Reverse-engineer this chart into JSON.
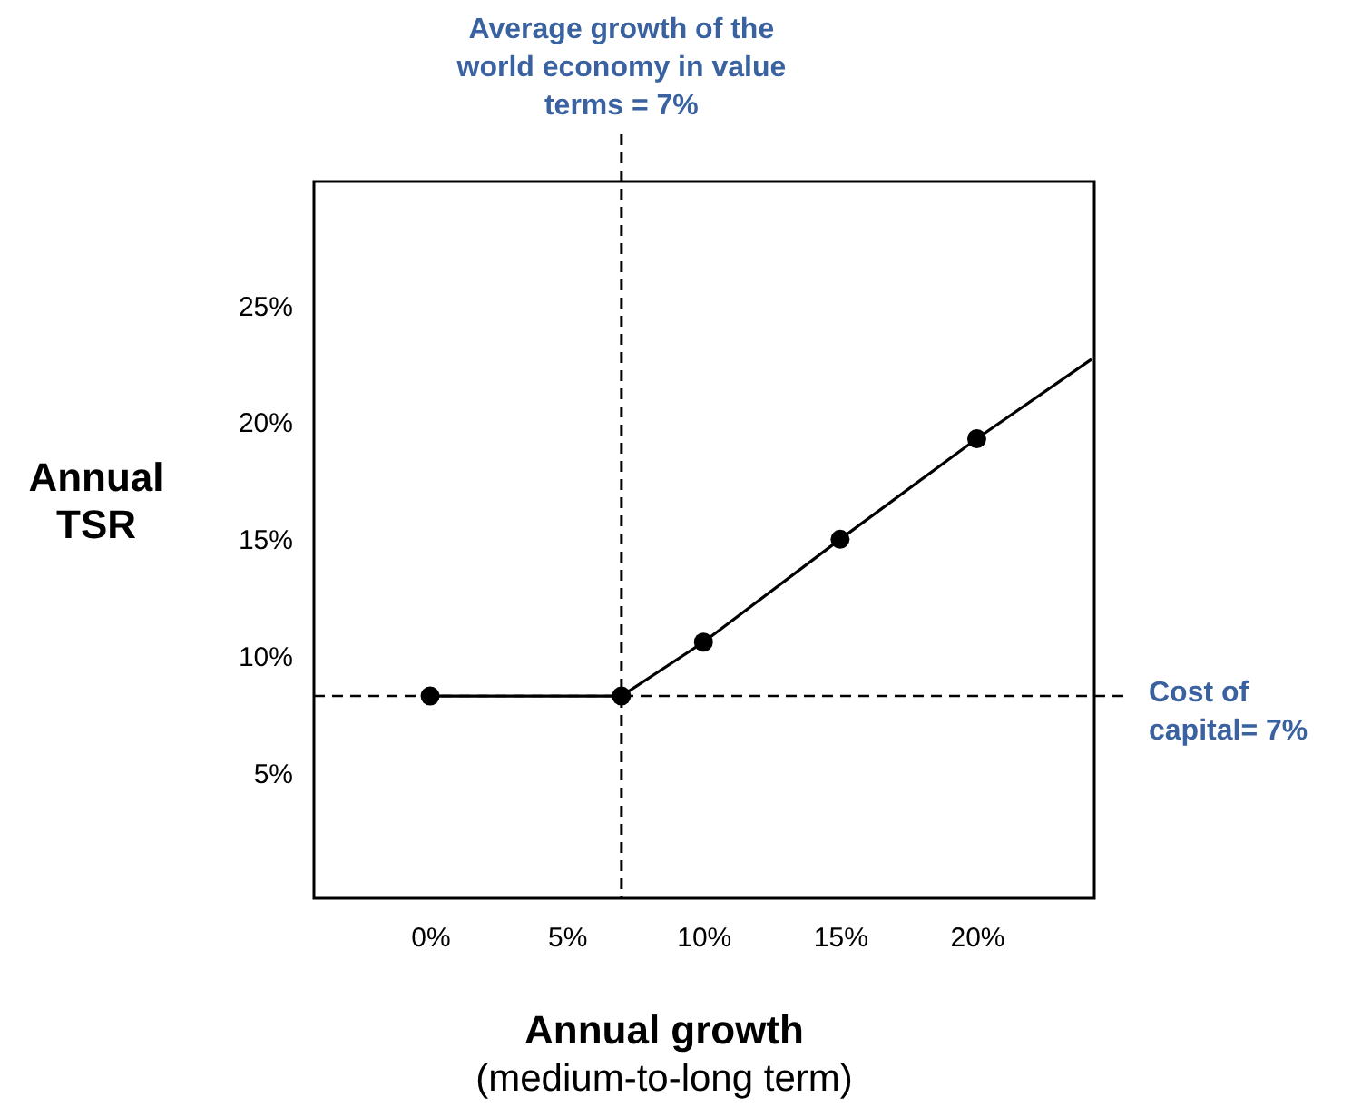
{
  "chart_data": {
    "type": "line",
    "xlabel": "Annual growth",
    "ylabel": "Annual TSR",
    "xlim": [
      -4.25,
      24.3
    ],
    "ylim": [
      -0.35,
      30.3
    ],
    "xticks": [
      {
        "value": 0,
        "label": "0%"
      },
      {
        "value": 5,
        "label": "5%"
      },
      {
        "value": 10,
        "label": "10%"
      },
      {
        "value": 15,
        "label": "15%"
      },
      {
        "value": 20,
        "label": "20%"
      }
    ],
    "yticks": [
      {
        "value": 5,
        "label": "5%"
      },
      {
        "value": 10,
        "label": "10%"
      },
      {
        "value": 15,
        "label": "15%"
      },
      {
        "value": 20,
        "label": "20%"
      },
      {
        "value": 25,
        "label": "25%"
      }
    ],
    "series": [
      {
        "color": "#000000",
        "marker": "none",
        "x": [
          0,
          7,
          10,
          15,
          20,
          24.2
        ],
        "values": [
          8.3,
          8.3,
          10.6,
          15,
          19.3,
          22.7
        ]
      },
      {
        "type": "scatter",
        "color": "#000000",
        "marker": "circle",
        "x": [
          0,
          7,
          10,
          15,
          20
        ],
        "values": [
          8.3,
          8.3,
          10.6,
          15,
          19.3
        ]
      }
    ],
    "ref_lines": [
      {
        "axis": "x",
        "value": 7,
        "label": "Average growth of the world economy in value terms = 7%",
        "color": "#000000",
        "line_style": "dashed"
      },
      {
        "axis": "y",
        "value": 8.3,
        "color": "#000000",
        "line_style": "dashed"
      }
    ],
    "annotations": [
      "(medium-to-long term)",
      "Cost of capital= 7%"
    ],
    "grid": false
  }
}
